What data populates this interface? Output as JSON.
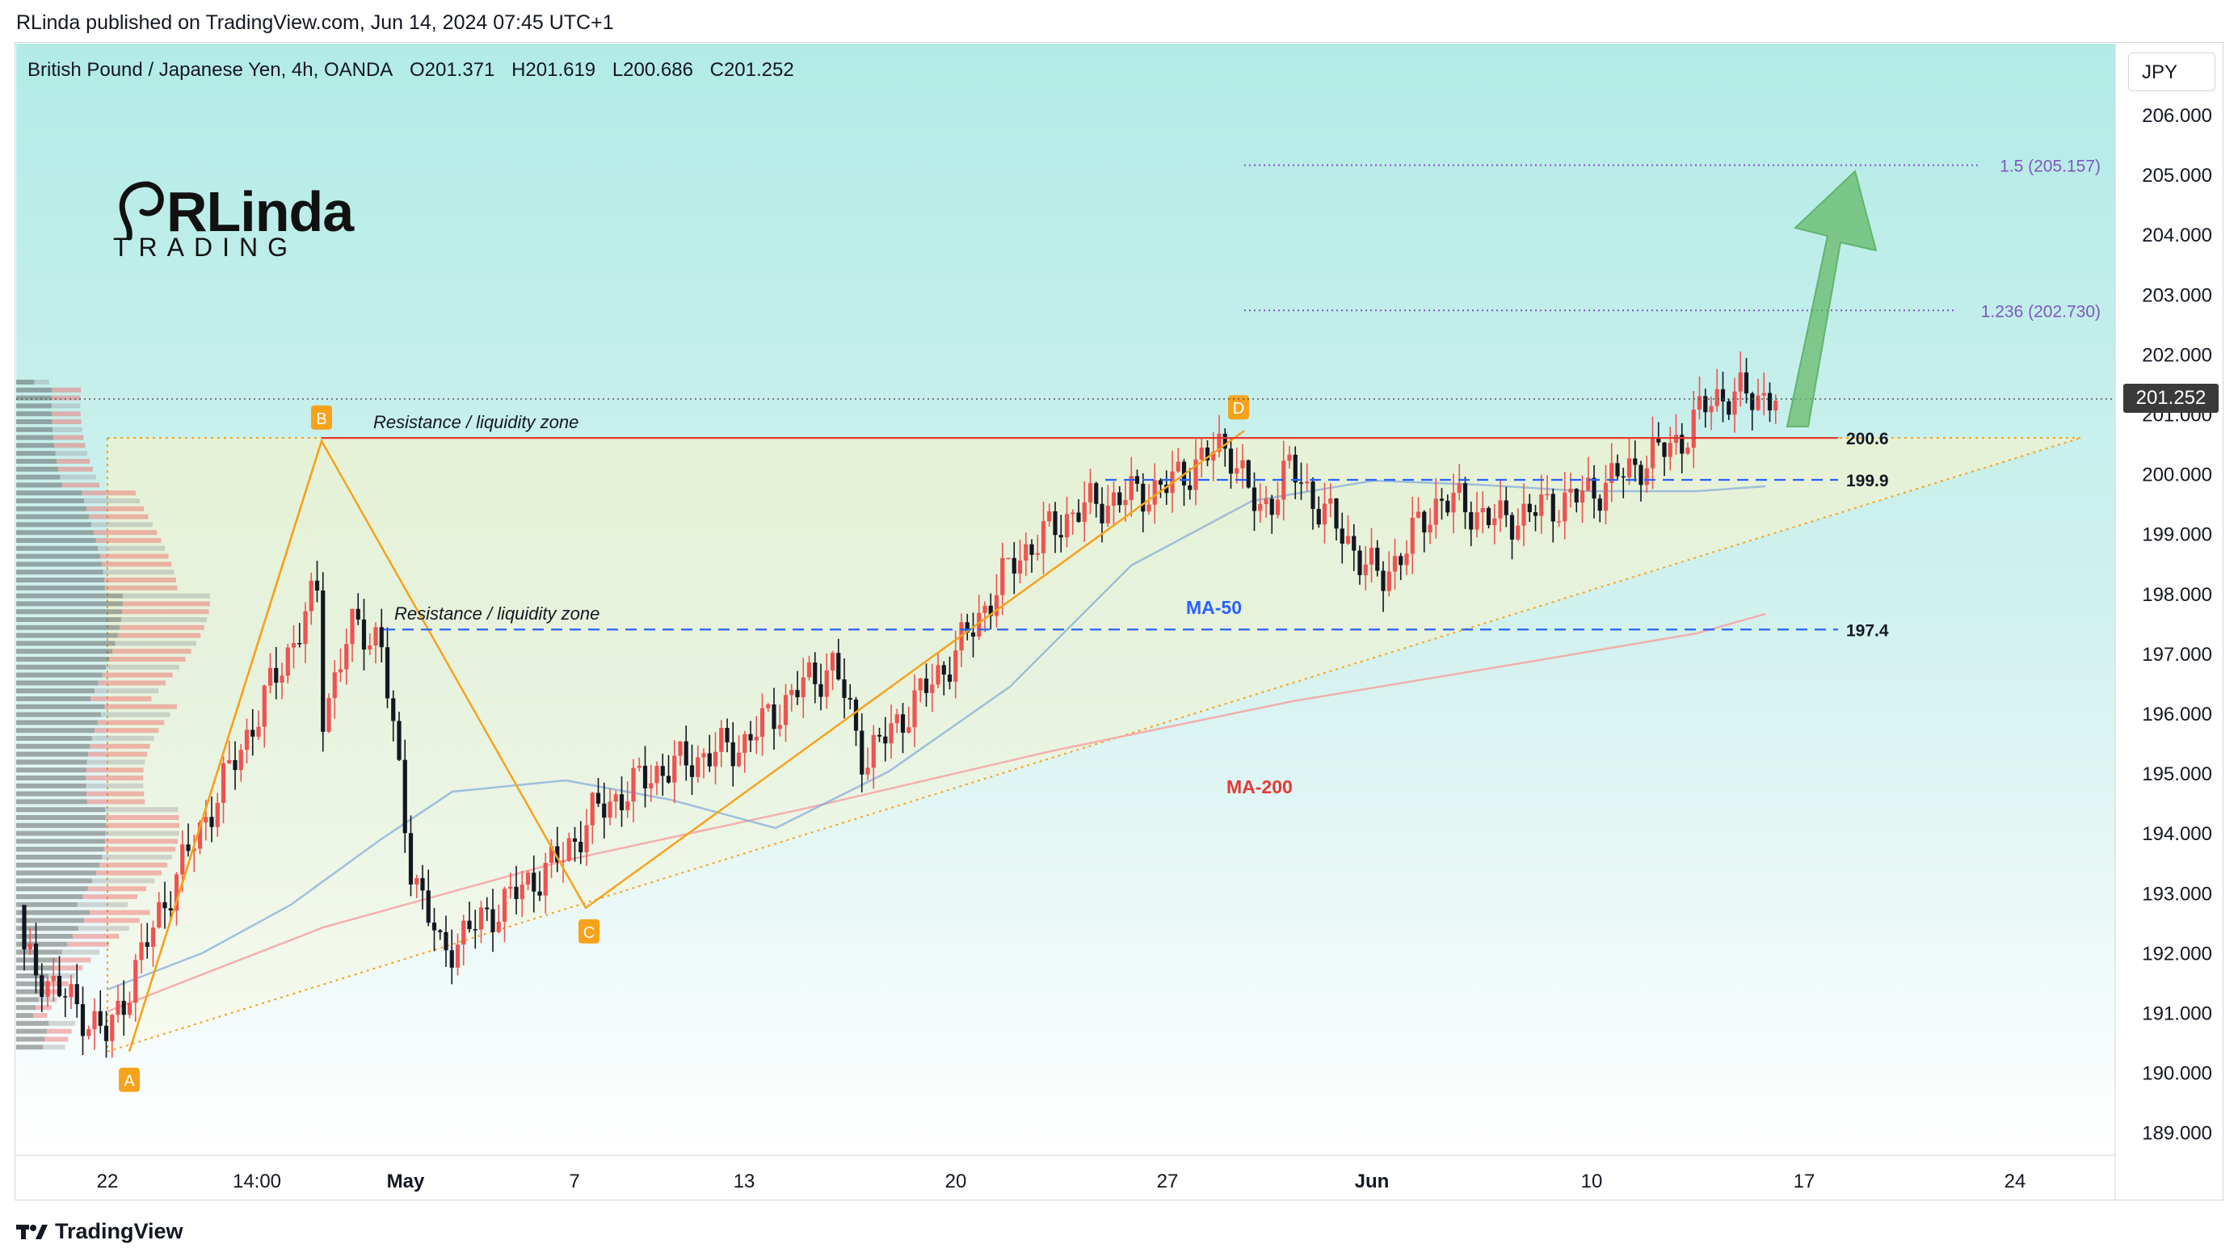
{
  "header": {
    "publisher_line": "RLinda published on TradingView.com, Jun 14, 2024 07:45 UTC+1"
  },
  "symbol": {
    "name": "British Pound / Japanese Yen, 4h, OANDA",
    "open": "O201.371",
    "high": "H201.619",
    "low": "L200.686",
    "close": "C201.252"
  },
  "currency_button": "JPY",
  "last_price": "201.252",
  "logo": {
    "line1": "RLinda",
    "line2": "TRADING"
  },
  "footer": {
    "brand": "TradingView"
  },
  "colors": {
    "bullish": "#ef5350",
    "bearish": "#131722",
    "resistance": "#e53935",
    "support_dash": "#2962ff",
    "fib": "#7e57c2",
    "pattern": "#f7a21b",
    "ma50": "#7fa8d8",
    "ma200": "#f4a3a3",
    "arrow": "#66bb6a"
  },
  "annotations": {
    "resistance_label_1": "Resistance / liquidity zone",
    "resistance_label_2": "Resistance / liquidity zone",
    "ma50_label": "MA-50",
    "ma200_label": "MA-200",
    "fib_1": "1.236 (202.730)",
    "fib_2": "1.5 (205.157)",
    "level_200_6": "200.6",
    "level_199_9": "199.9",
    "level_197_4": "197.4",
    "points": [
      "A",
      "B",
      "C",
      "D"
    ]
  },
  "chart_data": {
    "type": "candlestick",
    "title": "British Pound / Japanese Yen, 4h, OANDA",
    "y_axis": {
      "ticks": [
        "189.000",
        "190.000",
        "191.000",
        "192.000",
        "193.000",
        "194.000",
        "195.000",
        "196.000",
        "197.000",
        "198.000",
        "199.000",
        "200.000",
        "201.000",
        "202.000",
        "203.000",
        "204.000",
        "205.000",
        "206.000"
      ],
      "range": [
        188.5,
        206.7
      ]
    },
    "x_axis": {
      "ticks": [
        "22",
        "14:00",
        "May",
        "7",
        "13",
        "20",
        "27",
        "Jun",
        "10",
        "17",
        "24"
      ]
    },
    "close_path": [
      [
        "Apr 18",
        192.5
      ],
      [
        "Apr 22",
        190.6
      ],
      [
        "Apr 24",
        193.0
      ],
      [
        "Apr 26",
        195.0
      ],
      [
        "Apr 29",
        198.1
      ],
      [
        "Apr 29",
        195.8
      ],
      [
        "Apr 30",
        197.4
      ],
      [
        "May 1",
        197.3
      ],
      [
        "May 2",
        193.5
      ],
      [
        "May 3",
        192.0
      ],
      [
        "May 6",
        193.2
      ],
      [
        "May 7",
        193.6
      ],
      [
        "May 8",
        194.3
      ],
      [
        "May 10",
        195.0
      ],
      [
        "May 13",
        195.5
      ],
      [
        "May 15",
        196.5
      ],
      [
        "May 16",
        196.8
      ],
      [
        "May 17",
        195.2
      ],
      [
        "May 20",
        197.0
      ],
      [
        "May 22",
        198.6
      ],
      [
        "May 24",
        199.4
      ],
      [
        "May 27",
        199.8
      ],
      [
        "May 28",
        200.2
      ],
      [
        "May 29",
        200.5
      ],
      [
        "May 30",
        199.3
      ],
      [
        "May 31",
        200.1
      ],
      [
        "Jun 3",
        198.2
      ],
      [
        "Jun 4",
        198.9
      ],
      [
        "Jun 5",
        199.6
      ],
      [
        "Jun 7",
        199.2
      ],
      [
        "Jun 10",
        199.7
      ],
      [
        "Jun 12",
        200.3
      ],
      [
        "Jun 13",
        200.6
      ],
      [
        "Jun 14",
        201.3
      ]
    ],
    "levels": [
      {
        "name": "Resistance / liquidity zone",
        "value": 200.6
      },
      {
        "name": "Resistance / liquidity zone",
        "value": 197.4
      },
      {
        "name": "199.9",
        "value": 199.9
      },
      {
        "name": "1.236",
        "value": 202.73
      },
      {
        "name": "1.5",
        "value": 205.157
      }
    ],
    "abcd": [
      {
        "label": "A",
        "value": 190.4
      },
      {
        "label": "B",
        "value": 200.6
      },
      {
        "label": "C",
        "value": 192.7
      },
      {
        "label": "D",
        "value": 200.7
      }
    ],
    "last_price": 201.252
  }
}
